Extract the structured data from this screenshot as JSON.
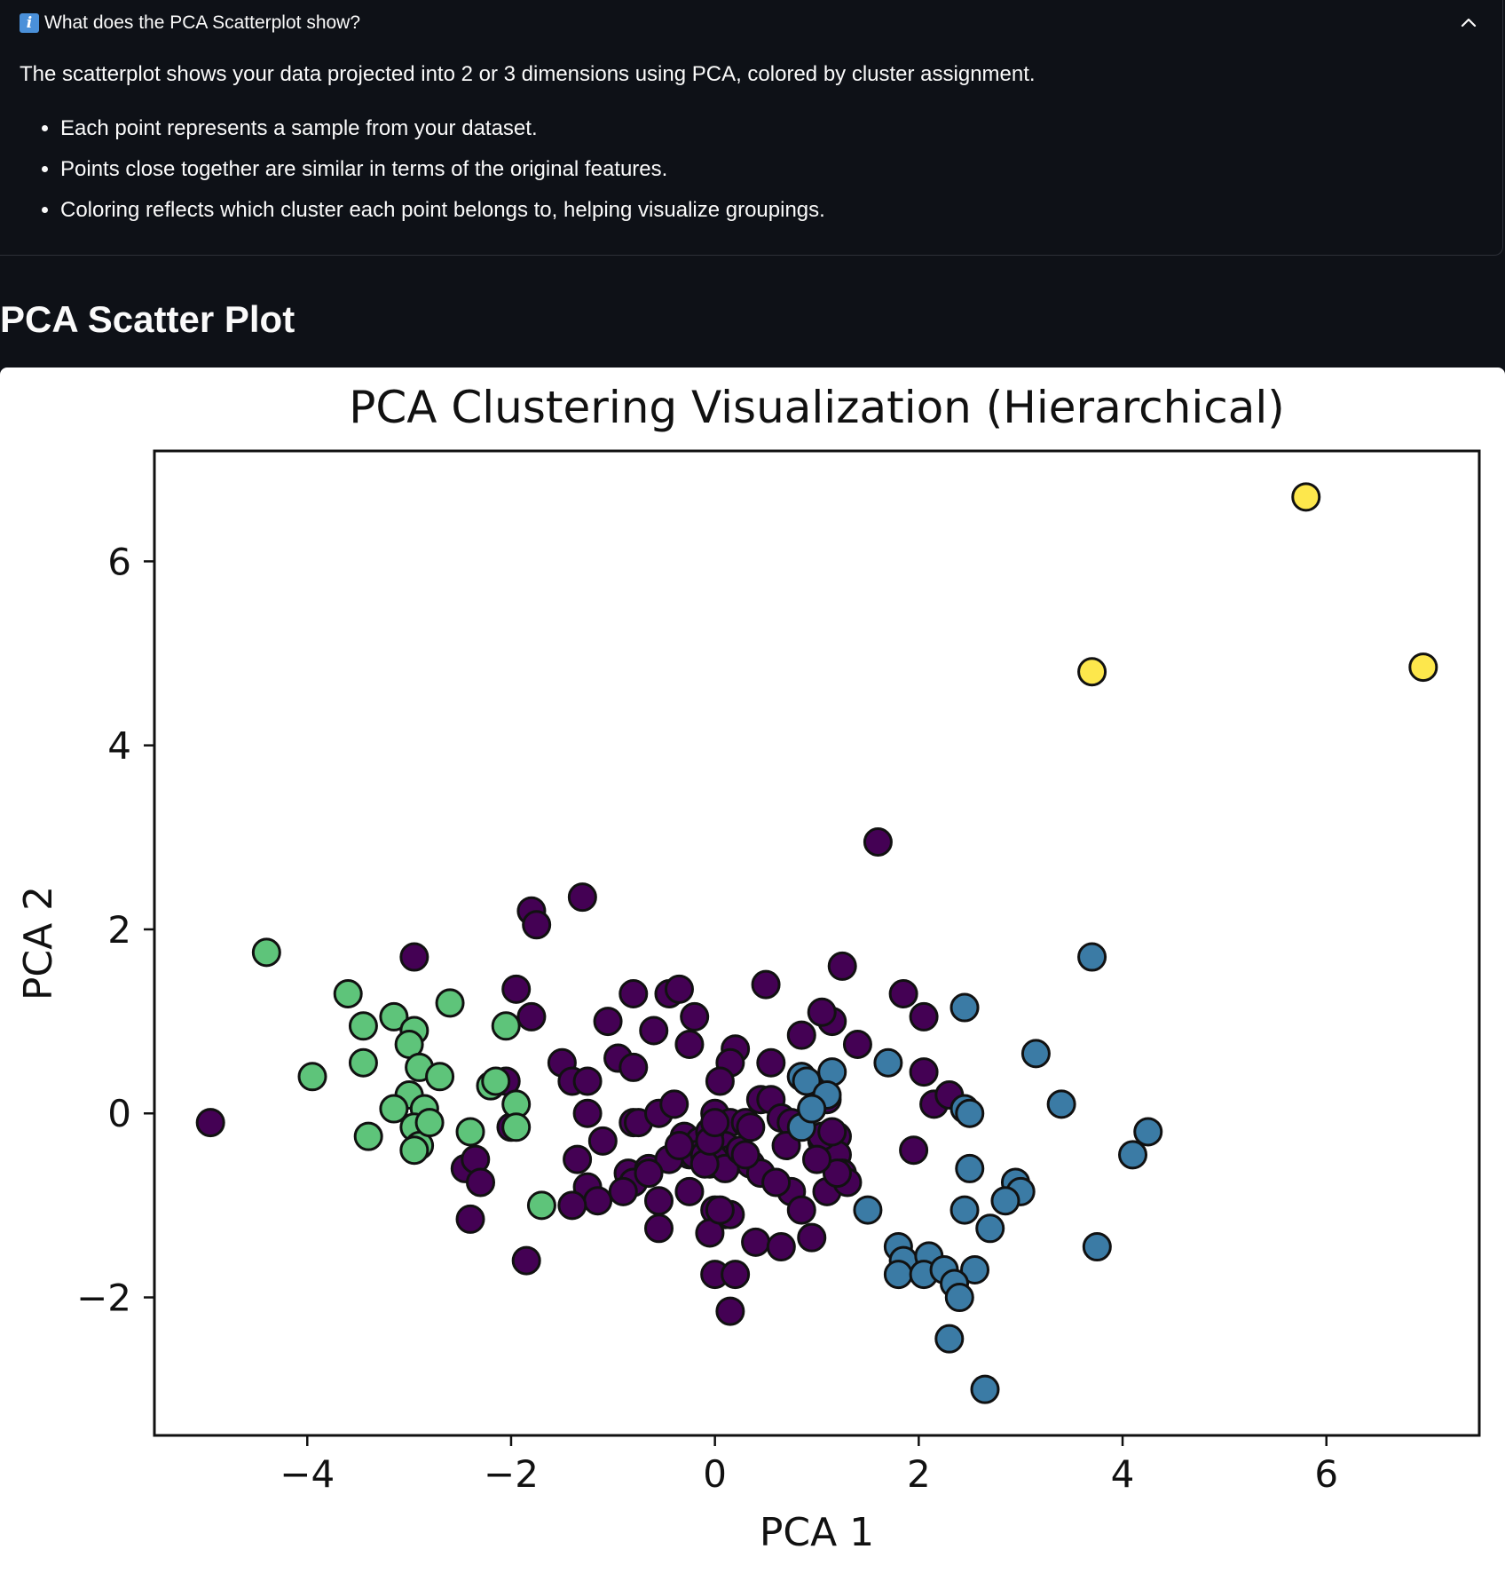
{
  "expander": {
    "icon": "info-icon",
    "title": "What does the PCA Scatterplot show?",
    "intro": "The scatterplot shows your data projected into 2 or 3 dimensions using PCA, colored by cluster assignment.",
    "bullets": [
      "Each point represents a sample from your dataset.",
      "Points close together are similar in terms of the original features.",
      "Coloring reflects which cluster each point belongs to, helping visualize groupings."
    ],
    "toggle_icon": "chevron-up-icon"
  },
  "section": {
    "title": "PCA Scatter Plot"
  },
  "chart_data": {
    "type": "scatter",
    "title": "PCA Clustering Visualization (Hierarchical)",
    "xlabel": "PCA 1",
    "ylabel": "PCA 2",
    "xlim": [
      -5.5,
      7.5
    ],
    "ylim": [
      -3.5,
      7.2
    ],
    "xticks": [
      -4,
      -2,
      0,
      2,
      4,
      6
    ],
    "yticks": [
      -2,
      0,
      2,
      4,
      6
    ],
    "xtick_labels": [
      "−4",
      "−2",
      "0",
      "2",
      "4",
      "6"
    ],
    "ytick_labels": [
      "−2",
      "0",
      "2",
      "4",
      "6"
    ],
    "grid": false,
    "legend": "none",
    "colors": {
      "cluster_0": "#440154",
      "cluster_1": "#3b7ba5",
      "cluster_2": "#5ec47a",
      "cluster_3": "#fde74c",
      "edge": "#111111"
    },
    "series": [
      {
        "cluster": 0,
        "x": [
          -4.95,
          -2.95,
          -1.95,
          -1.8,
          -1.75,
          -1.3,
          1.6,
          -1.8,
          -0.8,
          -0.45,
          -0.35,
          -0.2,
          -0.25,
          0.5,
          1.25,
          1.85,
          2.05,
          0.2,
          0.15,
          0.55,
          0.85,
          1.15,
          1.05,
          1.4,
          -1.05,
          -0.95,
          -0.6,
          -0.8,
          -1.5,
          -1.4,
          -1.25,
          -2.05,
          -2.0,
          -1.25,
          -0.8,
          -0.75,
          -0.55,
          -0.4,
          -0.3,
          -0.25,
          0.0,
          0.05,
          0.15,
          0.3,
          0.45,
          0.55,
          0.65,
          0.75,
          0.85,
          0.95,
          1.05,
          1.1,
          1.2,
          -0.15,
          -0.2,
          0.1,
          0.2,
          -1.1,
          -1.35,
          -1.25,
          -0.85,
          -0.65,
          -0.8,
          -0.9,
          -1.15,
          -2.45,
          -2.35,
          -2.3,
          -2.4,
          -1.85,
          -0.55,
          -0.55,
          -0.25,
          -0.1,
          -0.05,
          0.15,
          0.0,
          0.1,
          0.15,
          0.4,
          0.65,
          0.75,
          0.85,
          0.95,
          1.1,
          1.2,
          1.25,
          1.3,
          1.95,
          2.05,
          2.15,
          2.3,
          0.0,
          -0.05,
          0.05,
          0.2,
          0.35,
          0.45,
          -0.05,
          0.0,
          0.1,
          1.05,
          1.15,
          1.2,
          0.25,
          0.3,
          -0.45,
          -0.35,
          -0.1,
          -1.4,
          -0.65,
          0.7,
          1.0,
          0.35,
          0.6,
          0.15,
          -0.05,
          0.0
        ],
        "y": [
          -0.1,
          1.7,
          1.35,
          2.2,
          2.05,
          2.35,
          2.95,
          1.05,
          1.3,
          1.3,
          1.35,
          1.05,
          0.75,
          1.4,
          1.6,
          1.3,
          1.05,
          0.7,
          0.55,
          0.55,
          0.85,
          1.0,
          1.1,
          0.75,
          1.0,
          0.6,
          0.9,
          0.5,
          0.55,
          0.35,
          0.35,
          0.35,
          -0.15,
          0.0,
          -0.1,
          -0.1,
          0.0,
          0.1,
          -0.25,
          -0.45,
          0.0,
          0.35,
          -0.1,
          -0.1,
          0.15,
          0.15,
          -0.05,
          -0.1,
          0.4,
          0.05,
          -0.3,
          0.15,
          -0.25,
          -0.3,
          -0.45,
          -0.35,
          -0.5,
          -0.3,
          -0.5,
          -0.8,
          -0.65,
          -0.6,
          -0.75,
          -0.85,
          -0.95,
          -0.6,
          -0.5,
          -0.75,
          -1.15,
          -1.6,
          -0.95,
          -1.25,
          -0.85,
          -0.45,
          -0.55,
          -0.5,
          -1.05,
          -1.1,
          -1.1,
          -1.4,
          -1.45,
          -0.85,
          -1.05,
          -1.35,
          -0.85,
          -0.45,
          -0.65,
          -0.75,
          -0.4,
          0.45,
          0.1,
          0.2,
          -1.75,
          -1.3,
          -1.05,
          -1.75,
          -0.55,
          -0.65,
          -0.2,
          -0.5,
          -0.6,
          -0.25,
          -0.2,
          -0.65,
          -0.4,
          -0.45,
          -0.5,
          -0.35,
          -0.55,
          -1.0,
          -0.65,
          -0.35,
          -0.5,
          -0.15,
          -0.75,
          -2.15,
          -0.3,
          -0.1
        ]
      },
      {
        "cluster": 1,
        "x": [
          3.7,
          2.45,
          3.15,
          1.7,
          1.15,
          0.85,
          0.9,
          1.1,
          0.85,
          2.45,
          2.5,
          3.4,
          4.25,
          4.1,
          2.5,
          2.95,
          3.0,
          2.85,
          1.5,
          2.45,
          2.7,
          3.75,
          2.55,
          1.8,
          1.85,
          2.1,
          1.8,
          2.05,
          2.25,
          2.35,
          2.4,
          2.3,
          2.65,
          0.95
        ],
        "y": [
          1.7,
          1.15,
          0.65,
          0.55,
          0.45,
          0.4,
          0.35,
          0.2,
          -0.15,
          0.05,
          0.0,
          0.1,
          -0.2,
          -0.45,
          -0.6,
          -0.75,
          -0.85,
          -0.95,
          -1.05,
          -1.05,
          -1.25,
          -1.45,
          -1.7,
          -1.45,
          -1.6,
          -1.55,
          -1.75,
          -1.75,
          -1.7,
          -1.85,
          -2.0,
          -2.45,
          -3.0,
          0.05
        ]
      },
      {
        "cluster": 2,
        "x": [
          -4.4,
          -3.6,
          -3.45,
          -3.15,
          -2.95,
          -3.0,
          -2.6,
          -2.05,
          -3.45,
          -2.9,
          -2.7,
          -3.95,
          -2.2,
          -2.15,
          -3.0,
          -2.85,
          -3.15,
          -2.95,
          -2.9,
          -2.4,
          -3.4,
          -2.95,
          -1.95,
          -1.95,
          -1.7,
          -2.8
        ],
        "y": [
          1.75,
          1.3,
          0.95,
          1.05,
          0.9,
          0.75,
          1.2,
          0.95,
          0.55,
          0.5,
          0.4,
          0.4,
          0.3,
          0.35,
          0.2,
          0.05,
          0.05,
          -0.15,
          -0.35,
          -0.2,
          -0.25,
          -0.4,
          0.1,
          -0.15,
          -1.0,
          -0.1
        ]
      },
      {
        "cluster": 3,
        "x": [
          5.8,
          3.7,
          6.95
        ],
        "y": [
          6.7,
          4.8,
          4.85
        ]
      }
    ]
  }
}
